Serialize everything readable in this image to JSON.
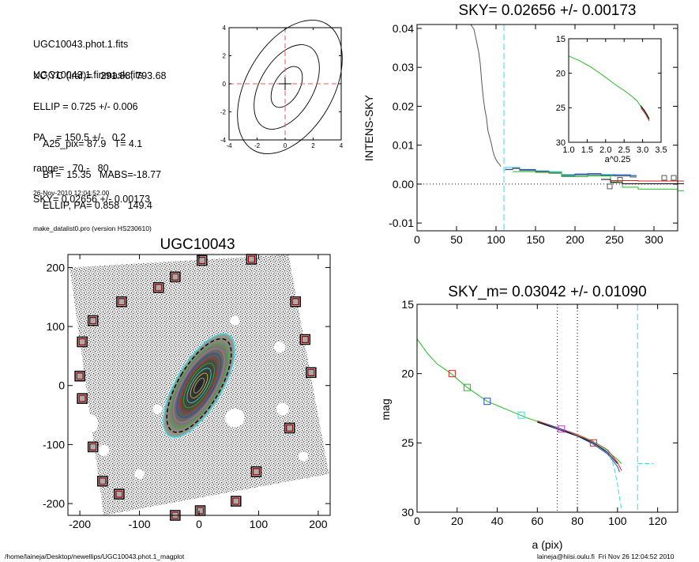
{
  "info": {
    "lines_a": [
      "UGC10043.phot.1.fits",
      "UGC10043.1.finmask.fits"
    ],
    "lines_b": [
      "XC,YC (iraf)=   291.88, 793.68",
      "ELLIP = 0.725 +/- 0.006",
      "PA    = 150.5 +/-   0.2",
      "range=   70.-   80.",
      "SKY= 0.02656 +/- 0.00173"
    ],
    "lines_c": [
      "A25_pix= 87.9   T= 4.1",
      "BT=  15.35   MABS=-18.77",
      "ELLIP, PA= 0.858   149.4"
    ],
    "lines_d": [
      "26-Nov-2010 12:04:52.00",
      "make_datalist0.pro (version HS230610)"
    ]
  },
  "footer": {
    "left": "/home/laineja/Desktop/newellips/UGC10043.phot.1_magplot",
    "right": "laineja@hiisi.oulu.fi  Fri Nov 26 12:04:52 2010"
  },
  "colors": {
    "grey": "#555555",
    "cyan": "#33ddee",
    "green": "#22bb22",
    "red": "#dd2222",
    "blue": "#2244cc",
    "marker": "#8b0000"
  },
  "chart_data": [
    {
      "id": "contour",
      "type": "contour",
      "title": "",
      "xlim": [
        -4,
        4
      ],
      "ylim": [
        -4,
        4
      ],
      "xticks": [
        "-4",
        "-2",
        "0",
        "2",
        "4"
      ],
      "yticks": [
        "-4",
        "-2",
        "0",
        "2",
        "4"
      ],
      "center": [
        0,
        0
      ]
    },
    {
      "id": "intens",
      "type": "line",
      "title": "SKY= 0.02656 +/- 0.00173",
      "xlabel": "",
      "ylabel": "INTENS-SKY",
      "xlim": [
        0,
        330
      ],
      "ylim": [
        -0.012,
        0.041
      ],
      "xticks": [
        "0",
        "50",
        "100",
        "150",
        "200",
        "250",
        "300"
      ],
      "yticks": [
        "-0.01",
        "0.00",
        "0.01",
        "0.02",
        "0.03",
        "0.04"
      ],
      "vline_cyan": 110,
      "profile": [
        [
          68,
          0.041
        ],
        [
          72,
          0.0398
        ],
        [
          75,
          0.037
        ],
        [
          78,
          0.034
        ],
        [
          80,
          0.031
        ],
        [
          82,
          0.026
        ],
        [
          84,
          0.022
        ],
        [
          86,
          0.019
        ],
        [
          88,
          0.017
        ],
        [
          89,
          0.015
        ],
        [
          90,
          0.0135
        ],
        [
          92,
          0.012
        ],
        [
          94,
          0.0105
        ],
        [
          96,
          0.0085
        ],
        [
          98,
          0.0072
        ],
        [
          100,
          0.0063
        ],
        [
          102,
          0.0056
        ],
        [
          104,
          0.0052
        ],
        [
          106,
          0.0045
        ]
      ],
      "step_series": [
        {
          "color": "cyan",
          "points": [
            [
              110,
              0.0036
            ],
            [
              112,
              0.0043
            ],
            [
              121,
              0.0043
            ],
            [
              130,
              0.0038
            ],
            [
              150,
              0.0034
            ],
            [
              167,
              0.0032
            ],
            [
              183,
              0.0025
            ],
            [
              200,
              0.0024
            ],
            [
              216,
              0.0025
            ],
            [
              233,
              0.0025
            ],
            [
              250,
              0.0022
            ],
            [
              270,
              0.0021
            ]
          ]
        },
        {
          "color": "blue",
          "points": [
            [
              112,
              0.0038
            ],
            [
              121,
              0.0041
            ],
            [
              130,
              0.0037
            ],
            [
              150,
              0.0033
            ],
            [
              167,
              0.003
            ],
            [
              183,
              0.0022
            ],
            [
              200,
              0.0026
            ],
            [
              216,
              0.0027
            ],
            [
              233,
              0.0023
            ],
            [
              250,
              0.0024
            ],
            [
              270,
              0.0022
            ]
          ]
        },
        {
          "color": "grey",
          "points": [
            [
              112,
              0.0037
            ],
            [
              121,
              0.004
            ],
            [
              130,
              0.0035
            ],
            [
              150,
              0.0032
            ],
            [
              167,
              0.0028
            ],
            [
              183,
              0.0023
            ],
            [
              200,
              0.0023
            ],
            [
              216,
              0.0024
            ],
            [
              233,
              0.0022
            ],
            [
              250,
              0.0021
            ],
            [
              270,
              0.0018
            ]
          ]
        },
        {
          "color": "green",
          "points": [
            [
              121,
              0.0032
            ],
            [
              150,
              0.003
            ],
            [
              183,
              0.0019
            ],
            [
              216,
              0.0021
            ],
            [
              245,
              0.0006
            ],
            [
              260,
              -0.0008
            ],
            [
              280,
              -0.0013
            ],
            [
              330,
              -0.0017
            ]
          ]
        },
        {
          "color": "black",
          "points": [
            [
              233,
              0.0012
            ],
            [
              245,
              0.0004
            ],
            [
              260,
              0.0001
            ],
            [
              330,
              0.0001
            ]
          ]
        },
        {
          "color": "red",
          "points": [
            [
              245,
              0.0009
            ],
            [
              280,
              0.0008
            ],
            [
              330,
              0.0008
            ]
          ]
        }
      ],
      "squares": [
        [
          244,
          -0.0006,
          "grey"
        ],
        [
          257,
          0.0011,
          "grey"
        ],
        [
          313,
          0.0016,
          "grey"
        ],
        [
          325,
          0.0016,
          "grey"
        ]
      ],
      "inset": {
        "xlabel": "a^0.25",
        "xlim": [
          1.0,
          3.5
        ],
        "ylim": [
          30,
          15
        ],
        "xticks": [
          "1.0",
          "1.5",
          "2.0",
          "2.5",
          "3.0",
          "3.5"
        ],
        "yticks": [
          "15",
          "20",
          "25",
          "30"
        ],
        "curve": [
          [
            1.0,
            17.5
          ],
          [
            1.3,
            18.2
          ],
          [
            1.6,
            19.1
          ],
          [
            1.9,
            20.2
          ],
          [
            2.1,
            21.0
          ],
          [
            2.3,
            21.8
          ],
          [
            2.5,
            22.5
          ],
          [
            2.7,
            23.3
          ],
          [
            2.85,
            24.0
          ],
          [
            2.95,
            24.8
          ],
          [
            3.05,
            25.5
          ],
          [
            3.12,
            26.1
          ],
          [
            3.18,
            26.7
          ]
        ]
      }
    },
    {
      "id": "image",
      "type": "scatter",
      "title": "UGC10043",
      "xlim": [
        -220,
        220
      ],
      "ylim": [
        -220,
        222
      ],
      "xticks": [
        "-200",
        "-100",
        "0",
        "100",
        "200"
      ],
      "yticks": [
        "-200",
        "-100",
        "0",
        "100",
        "200"
      ],
      "galaxy": {
        "center": [
          0,
          0
        ],
        "pa_deg": 150.5,
        "ellip": 0.725,
        "outer_axis": 105
      },
      "mask_boxes": [
        [
          5,
          212
        ],
        [
          88,
          214
        ],
        [
          -40,
          184
        ],
        [
          -68,
          166
        ],
        [
          -130,
          142
        ],
        [
          -178,
          110
        ],
        [
          -196,
          74
        ],
        [
          -200,
          16
        ],
        [
          -196,
          -22
        ],
        [
          -178,
          -104
        ],
        [
          -162,
          -162
        ],
        [
          -134,
          -184
        ],
        [
          -40,
          -220
        ],
        [
          2,
          -212
        ],
        [
          62,
          -196
        ],
        [
          96,
          -146
        ],
        [
          152,
          -72
        ],
        [
          188,
          22
        ],
        [
          178,
          78
        ],
        [
          162,
          142
        ]
      ]
    },
    {
      "id": "mag",
      "type": "line",
      "title": "SKY_m=  0.03042 +/- 0.01090",
      "xlabel": "a (pix)",
      "ylabel": "mag",
      "xlim": [
        0,
        130
      ],
      "ylim": [
        30,
        15
      ],
      "xticks": [
        "0",
        "20",
        "40",
        "60",
        "80",
        "100",
        "120"
      ],
      "yticks": [
        "15",
        "20",
        "25",
        "30"
      ],
      "vlines_dotted": [
        70,
        80
      ],
      "vline_cyan": 110,
      "cyan_flat": {
        "x": [
          110,
          118
        ],
        "y": 26.5
      },
      "series": [
        {
          "color": "green",
          "points": [
            [
              0,
              17.5
            ],
            [
              5,
              18.5
            ],
            [
              10,
              19.3
            ],
            [
              17,
              20.0
            ],
            [
              25,
              21.0
            ],
            [
              35,
              22.0
            ],
            [
              45,
              22.6
            ],
            [
              55,
              23.2
            ],
            [
              65,
              23.7
            ],
            [
              72,
              24.0
            ],
            [
              80,
              24.4
            ],
            [
              88,
              25.0
            ],
            [
              95,
              25.6
            ],
            [
              100,
              26.2
            ],
            [
              102,
              26.5
            ]
          ]
        },
        {
          "color": "red",
          "points": [
            [
              60,
              23.4
            ],
            [
              70,
              23.9
            ],
            [
              80,
              24.4
            ],
            [
              88,
              24.9
            ],
            [
              95,
              25.5
            ],
            [
              100,
              26.4
            ],
            [
              102,
              27.0
            ]
          ]
        },
        {
          "color": "blue",
          "points": [
            [
              60,
              23.5
            ],
            [
              70,
              23.9
            ],
            [
              80,
              24.5
            ],
            [
              88,
              25.1
            ],
            [
              95,
              25.8
            ],
            [
              100,
              26.7
            ],
            [
              101,
              27.1
            ]
          ]
        },
        {
          "color": "black",
          "points": [
            [
              60,
              23.5
            ],
            [
              70,
              24.0
            ],
            [
              80,
              24.5
            ],
            [
              88,
              25.0
            ],
            [
              95,
              25.7
            ],
            [
              100,
              26.5
            ]
          ]
        },
        {
          "color": "cyan",
          "points": [
            [
              88,
              24.9
            ],
            [
              95,
              25.6
            ],
            [
              98,
              26.6
            ],
            [
              100,
              28.0
            ],
            [
              102,
              29.8
            ]
          ]
        }
      ],
      "squares": [
        [
          17.5,
          20.0,
          "red"
        ],
        [
          25,
          21.0,
          "green"
        ],
        [
          35,
          22.0,
          "blue"
        ],
        [
          52,
          23.0,
          "cyan"
        ],
        [
          72,
          24.0,
          "magenta"
        ],
        [
          88,
          25.0,
          "red"
        ]
      ]
    }
  ]
}
